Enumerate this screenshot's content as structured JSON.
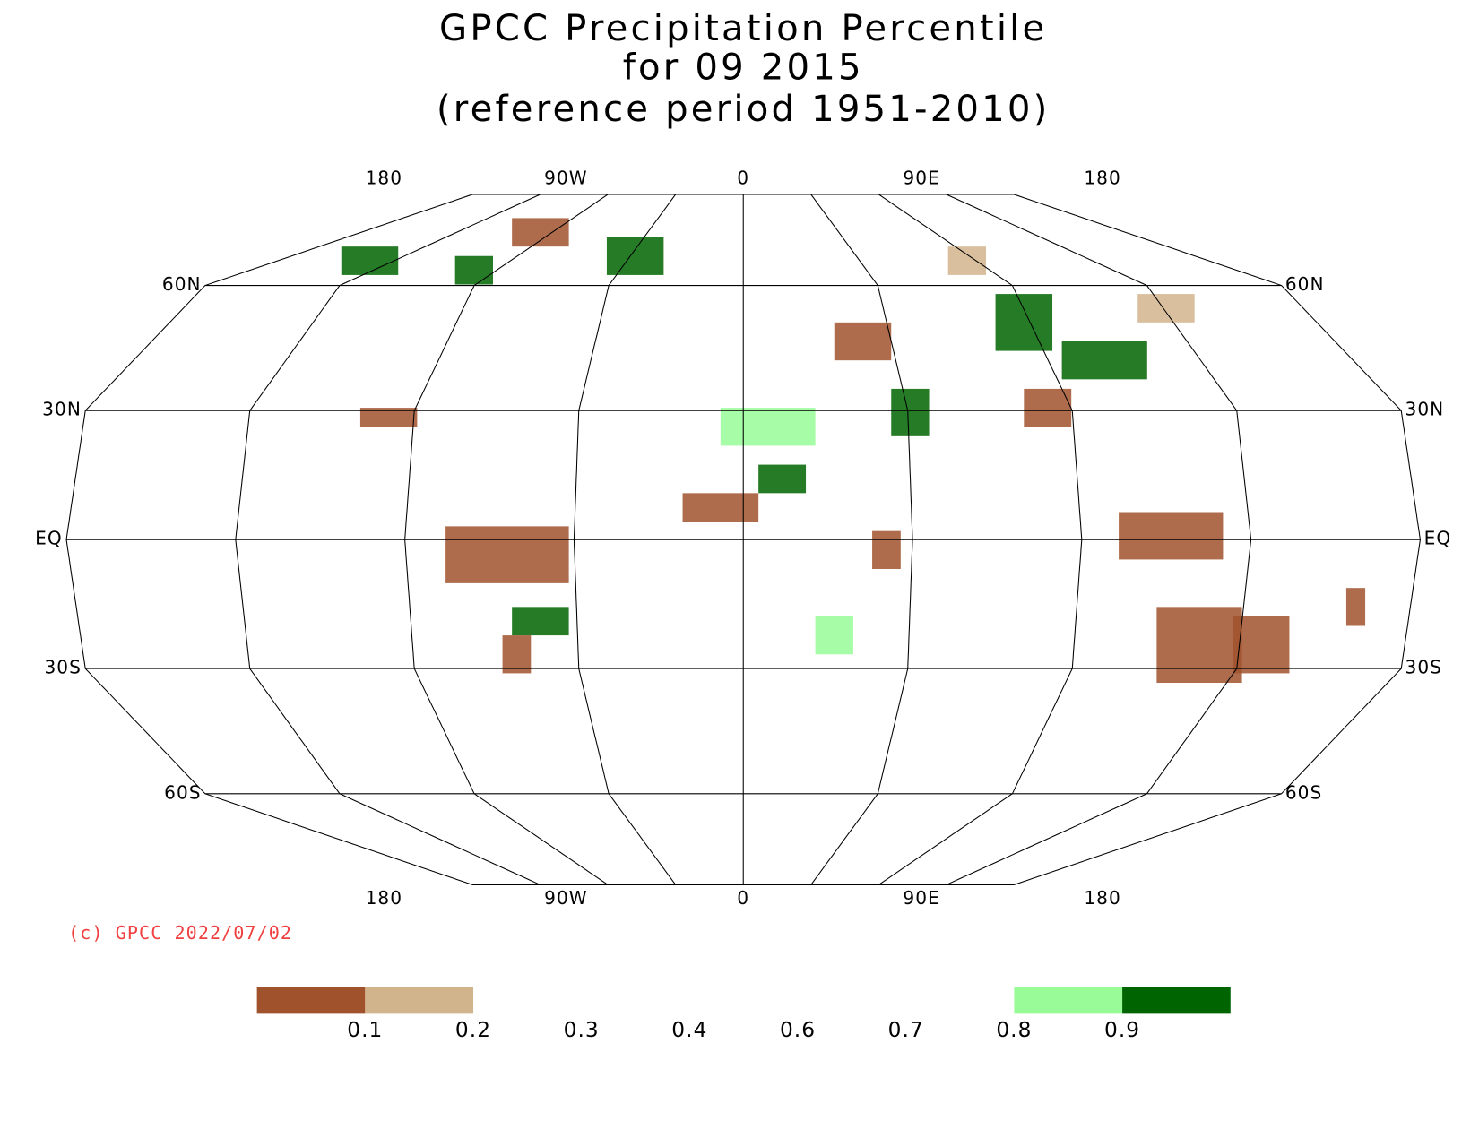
{
  "title_lines": [
    "GPCC Precipitation Percentile",
    "for 09 2015",
    "(reference period 1951-2010)"
  ],
  "map": {
    "longitude_labels_top": [
      "180",
      "90W",
      "0",
      "90E",
      "180"
    ],
    "longitude_labels_bottom": [
      "180",
      "90W",
      "0",
      "90E",
      "180"
    ],
    "latitude_labels_left": [
      "60N",
      "30N",
      "EQ",
      "30S",
      "60S"
    ],
    "latitude_labels_right": [
      "60N",
      "30N",
      "EQ",
      "30S",
      "60S"
    ]
  },
  "credit": "(c) GPCC 2022/07/02",
  "legend": {
    "levels": [
      0.1,
      0.2,
      0.3,
      0.4,
      0.6,
      0.7,
      0.8,
      0.9
    ],
    "colors": [
      "#a0522d",
      "#d2b48c",
      "#ffffff",
      "#ffffff",
      "#ffffff",
      "#ffffff",
      "#ffffff",
      "#98fb98",
      "#006400"
    ]
  }
}
